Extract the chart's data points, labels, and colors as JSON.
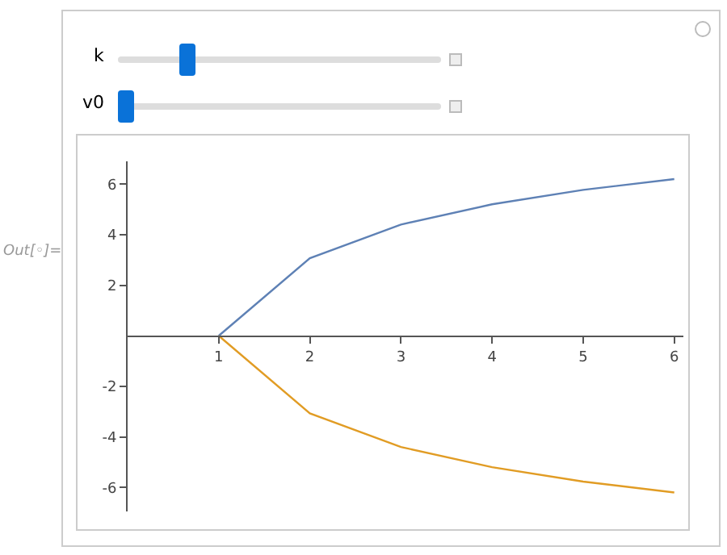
{
  "chart_data": {
    "type": "line",
    "x": [
      1,
      2,
      3,
      4,
      5,
      6
    ],
    "series": [
      {
        "color": "#5e81b5",
        "values": [
          0,
          3.07,
          4.4,
          5.2,
          5.77,
          6.2
        ]
      },
      {
        "color": "#e19c24",
        "values": [
          0,
          -3.07,
          -4.4,
          -5.2,
          -5.77,
          -6.2
        ]
      }
    ],
    "xlim": [
      0,
      6.1
    ],
    "xticks": [
      1,
      2,
      3,
      4,
      5,
      6
    ],
    "ylim": [
      -6.95,
      6.9
    ],
    "yticks": [
      -6,
      -4,
      -2,
      2,
      4,
      6
    ],
    "marker": "none",
    "line_style": "solid",
    "annotations": [
      "k",
      "v0",
      "Out[◦]="
    ]
  }
}
